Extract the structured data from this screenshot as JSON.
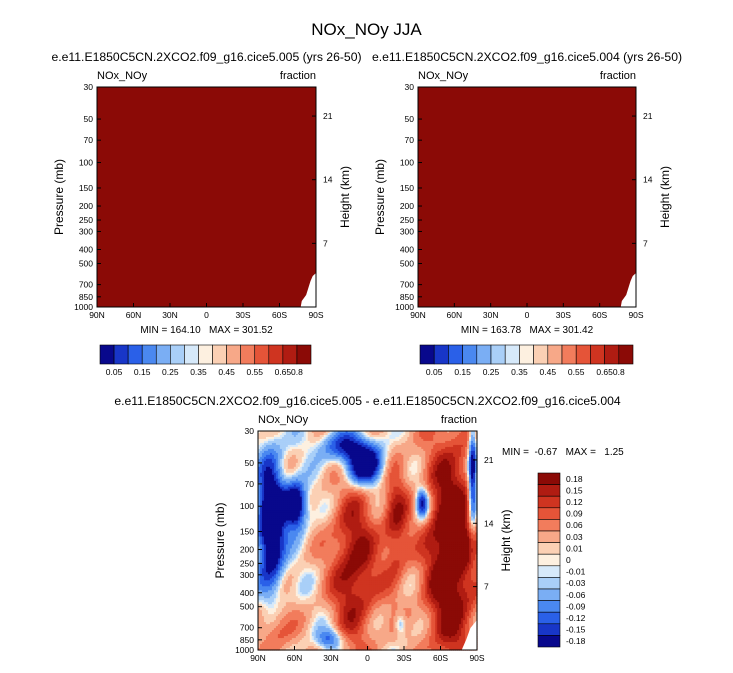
{
  "page_title": "NOx_NOy JJA",
  "chart_data": [
    {
      "type": "heatmap",
      "id": "top-left",
      "title": "e.e11.E1850C5CN.2XCO2.f09_g16.cice5.005 (yrs 26-50)",
      "left_label": "NOx_NOy",
      "right_label": "fraction",
      "ylabel": "Pressure (mb)",
      "ylabel_right": "Height (km)",
      "xticks": [
        "90N",
        "60N",
        "30N",
        "0",
        "30S",
        "60S",
        "90S"
      ],
      "yticks": [
        "30",
        "50",
        "70",
        "100",
        "150",
        "200",
        "250",
        "300",
        "400",
        "500",
        "700",
        "850",
        "1000"
      ],
      "yticks_right": [
        "21",
        "14",
        "7"
      ],
      "ylim": [
        1000,
        30
      ],
      "field_value": 0.8,
      "stats": "MIN = 164.10   MAX = 301.52",
      "colorbar": {
        "labels": [
          "0.05",
          "0.15",
          "0.25",
          "0.35",
          "0.45",
          "0.55",
          "0.65",
          "0.8"
        ],
        "colors": [
          "#08088c",
          "#1836c8",
          "#2a60e8",
          "#4a88f0",
          "#7aaef4",
          "#a9cff8",
          "#d6e9fa",
          "#fdf0e0",
          "#fbd0b4",
          "#f7a888",
          "#f27c5c",
          "#e55438",
          "#cf3420",
          "#b01c12",
          "#8b0a06"
        ]
      }
    },
    {
      "type": "heatmap",
      "id": "top-right",
      "title": "e.e11.E1850C5CN.2XCO2.f09_g16.cice5.004 (yrs 26-50)",
      "left_label": "NOx_NOy",
      "right_label": "fraction",
      "ylabel": "Pressure (mb)",
      "ylabel_right": "Height (km)",
      "xticks": [
        "90N",
        "60N",
        "30N",
        "0",
        "30S",
        "60S",
        "90S"
      ],
      "yticks": [
        "30",
        "50",
        "70",
        "100",
        "150",
        "200",
        "250",
        "300",
        "400",
        "500",
        "700",
        "850",
        "1000"
      ],
      "yticks_right": [
        "21",
        "14",
        "7"
      ],
      "ylim": [
        1000,
        30
      ],
      "field_value": 0.8,
      "stats": "MIN = 163.78   MAX = 301.42",
      "colorbar": {
        "labels": [
          "0.05",
          "0.15",
          "0.25",
          "0.35",
          "0.45",
          "0.55",
          "0.65",
          "0.8"
        ],
        "colors": [
          "#08088c",
          "#1836c8",
          "#2a60e8",
          "#4a88f0",
          "#7aaef4",
          "#a9cff8",
          "#d6e9fa",
          "#fdf0e0",
          "#fbd0b4",
          "#f7a888",
          "#f27c5c",
          "#e55438",
          "#cf3420",
          "#b01c12",
          "#8b0a06"
        ]
      }
    },
    {
      "type": "heatmap",
      "id": "difference",
      "title": "e.e11.E1850C5CN.2XCO2.f09_g16.cice5.005 - e.e11.E1850C5CN.2XCO2.f09_g16.cice5.004",
      "left_label": "NOx_NOy",
      "right_label": "fraction",
      "ylabel": "Pressure (mb)",
      "ylabel_right": "Height (km)",
      "xticks": [
        "90N",
        "60N",
        "30N",
        "0",
        "30S",
        "60S",
        "90S"
      ],
      "yticks": [
        "30",
        "50",
        "70",
        "100",
        "150",
        "200",
        "250",
        "300",
        "400",
        "500",
        "700",
        "850",
        "1000"
      ],
      "yticks_right": [
        "21",
        "14",
        "7"
      ],
      "ylim": [
        1000,
        30
      ],
      "stats": "MIN =  -0.67   MAX =   1.25",
      "colorbar": {
        "labels": [
          "0.18",
          "0.15",
          "0.12",
          "0.09",
          "0.06",
          "0.03",
          "0.01",
          "0",
          "-0.01",
          "-0.03",
          "-0.06",
          "-0.09",
          "-0.12",
          "-0.15",
          "-0.18"
        ],
        "colors": [
          "#8b0a06",
          "#b01c12",
          "#cf3420",
          "#e55438",
          "#f27c5c",
          "#f7a888",
          "#fbd0b4",
          "#fdf0e0",
          "#d6e9fa",
          "#a9cff8",
          "#7aaef4",
          "#4a88f0",
          "#2a60e8",
          "#1836c8",
          "#08088c"
        ]
      }
    }
  ]
}
